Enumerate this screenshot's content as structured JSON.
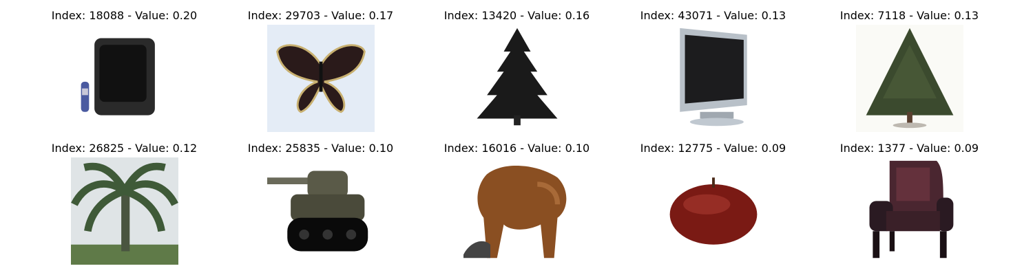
{
  "panels": [
    {
      "title": "Index: 18088 - Value: 0.20",
      "icon": "crt-television-icon"
    },
    {
      "title": "Index: 29703 - Value: 0.17",
      "icon": "butterfly-icon"
    },
    {
      "title": "Index: 13420 - Value: 0.16",
      "icon": "pine-tree-icon"
    },
    {
      "title": "Index: 43071 - Value: 0.13",
      "icon": "flat-tv-icon"
    },
    {
      "title": "Index: 7118 - Value: 0.13",
      "icon": "tree-icon"
    },
    {
      "title": "Index: 26825 - Value: 0.12",
      "icon": "palm-tree-icon"
    },
    {
      "title": "Index: 25835 - Value: 0.10",
      "icon": "tank-icon"
    },
    {
      "title": "Index: 16016 - Value: 0.10",
      "icon": "bear-icon"
    },
    {
      "title": "Index: 12775 - Value: 0.09",
      "icon": "apple-icon"
    },
    {
      "title": "Index: 1377 - Value: 0.09",
      "icon": "armchair-icon"
    }
  ]
}
